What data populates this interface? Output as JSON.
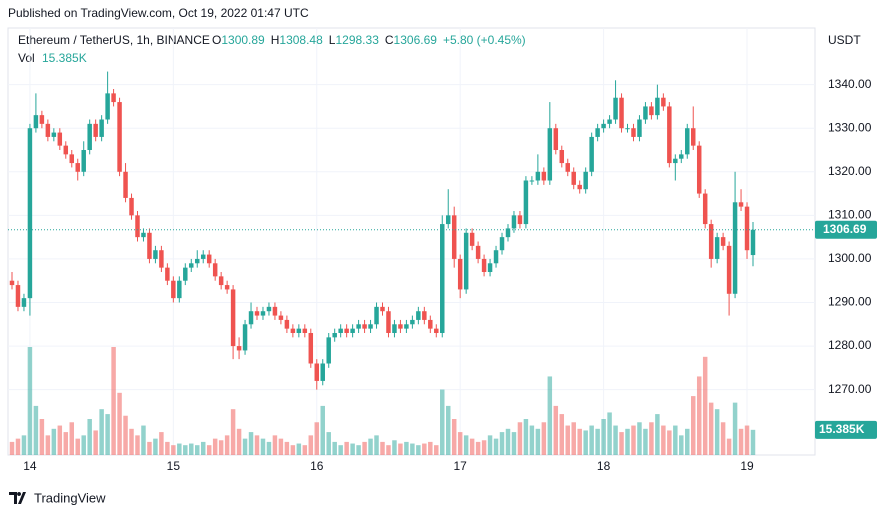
{
  "published": "Published on TradingView.com, Oct 19, 2022 01:47 UTC",
  "brand": "TradingView",
  "chart_data": {
    "type": "candlestick",
    "symbol": "Ethereum / TetherUS, 1h, BINANCE",
    "ohlc_letters": [
      "O",
      "H",
      "L",
      "C"
    ],
    "change": "+5.80 (+0.45%)",
    "volume_title": "Vol",
    "volume_last_label": "15.385K",
    "y_unit": "USDT",
    "up_color": "#26a69a",
    "down_color": "#ef5350",
    "ylim": [
      1255,
      1353
    ],
    "yticks": [
      {
        "value": 1270,
        "label": "1270.00"
      },
      {
        "value": 1280,
        "label": "1280.00"
      },
      {
        "value": 1290,
        "label": "1290.00"
      },
      {
        "value": 1300,
        "label": "1300.00"
      },
      {
        "value": 1310,
        "label": "1310.00"
      },
      {
        "value": 1320,
        "label": "1320.00"
      },
      {
        "value": 1330,
        "label": "1330.00"
      },
      {
        "value": 1340,
        "label": "1340.00"
      }
    ],
    "grid": true,
    "categories": [
      null,
      null,
      null,
      "14",
      null,
      null,
      null,
      null,
      null,
      null,
      null,
      null,
      null,
      null,
      null,
      null,
      null,
      null,
      null,
      null,
      null,
      null,
      null,
      null,
      null,
      null,
      null,
      "15",
      null,
      null,
      null,
      null,
      null,
      null,
      null,
      null,
      null,
      null,
      null,
      null,
      null,
      null,
      null,
      null,
      null,
      null,
      null,
      null,
      null,
      null,
      null,
      "16",
      null,
      null,
      null,
      null,
      null,
      null,
      null,
      null,
      null,
      null,
      null,
      null,
      null,
      null,
      null,
      null,
      null,
      null,
      null,
      null,
      null,
      null,
      null,
      "17",
      null,
      null,
      null,
      null,
      null,
      null,
      null,
      null,
      null,
      null,
      null,
      null,
      null,
      null,
      null,
      null,
      null,
      null,
      null,
      null,
      null,
      null,
      null,
      "18",
      null,
      null,
      null,
      null,
      null,
      null,
      null,
      null,
      null,
      null,
      null,
      null,
      null,
      null,
      null,
      null,
      null,
      null,
      null,
      null,
      null,
      null,
      null,
      "19",
      null
    ],
    "open": [
      1295,
      1294,
      1289,
      1291,
      1330,
      1333,
      1331,
      1328,
      1329,
      1326,
      1324,
      1322,
      1320,
      1325,
      1331,
      1328,
      1332,
      1338,
      1336,
      1320,
      1314,
      1310,
      1305,
      1306,
      1300,
      1302,
      1298,
      1295,
      1291,
      1295,
      1298,
      1299,
      1300,
      1301,
      1299,
      1296,
      1294,
      1293,
      1280,
      1279,
      1285,
      1288,
      1287,
      1288,
      1289,
      1287,
      1286,
      1284,
      1283,
      1284,
      1283,
      1276,
      1272,
      1276,
      1282,
      1283,
      1284,
      1283,
      1284,
      1285,
      1284,
      1285,
      1289,
      1288,
      1283,
      1285,
      1284,
      1285,
      1286,
      1288,
      1286,
      1284,
      1283,
      1308,
      1310,
      1300,
      1293,
      1306,
      1303,
      1300,
      1297,
      1299,
      1302,
      1305,
      1307,
      1310,
      1308,
      1318,
      1318,
      1320,
      1318,
      1330,
      1325,
      1322,
      1320,
      1317,
      1316,
      1320,
      1328,
      1330,
      1331,
      1332,
      1337,
      1330,
      1330,
      1328,
      1332,
      1335,
      1333,
      1337,
      1335,
      1322,
      1323,
      1324,
      1330,
      1326,
      1315,
      1308,
      1300,
      1305,
      1303,
      1292,
      1313,
      1312,
      1300.89
    ],
    "high": [
      1297,
      1295,
      1292,
      1331,
      1338,
      1334,
      1332,
      1330,
      1330,
      1327,
      1325,
      1323,
      1327,
      1332,
      1332,
      1333,
      1343,
      1339,
      1337,
      1322,
      1315,
      1311,
      1307,
      1307,
      1303,
      1303,
      1299,
      1296,
      1296,
      1299,
      1300,
      1302,
      1302,
      1302,
      1300,
      1297,
      1295,
      1294,
      1282,
      1286,
      1290,
      1289,
      1289,
      1290,
      1290,
      1288,
      1287,
      1285,
      1285,
      1285,
      1284,
      1277,
      1277,
      1283,
      1284,
      1285,
      1285,
      1285,
      1286,
      1286,
      1286,
      1290,
      1290,
      1289,
      1286,
      1286,
      1286,
      1287,
      1289,
      1289,
      1287,
      1285,
      1310,
      1316,
      1312,
      1301,
      1307,
      1307,
      1304,
      1301,
      1300,
      1303,
      1306,
      1308,
      1311,
      1311,
      1319,
      1319,
      1324,
      1321,
      1336,
      1331,
      1326,
      1323,
      1321,
      1318,
      1321,
      1329,
      1331,
      1332,
      1333,
      1341,
      1338,
      1331,
      1331,
      1333,
      1336,
      1336,
      1340,
      1338,
      1336,
      1324,
      1325,
      1331,
      1335,
      1327,
      1316,
      1309,
      1306,
      1306,
      1304,
      1320,
      1316,
      1313,
      1308.48
    ],
    "low": [
      1293,
      1288,
      1288,
      1287,
      1329,
      1330,
      1327,
      1327,
      1325,
      1323,
      1321,
      1318,
      1319,
      1324,
      1327,
      1327,
      1331,
      1335,
      1319,
      1313,
      1309,
      1304,
      1304,
      1299,
      1299,
      1297,
      1294,
      1290,
      1290,
      1294,
      1297,
      1298,
      1299,
      1298,
      1295,
      1293,
      1292,
      1277,
      1277,
      1278,
      1284,
      1286,
      1286,
      1287,
      1286,
      1285,
      1283,
      1282,
      1282,
      1282,
      1275,
      1270,
      1271,
      1275,
      1281,
      1282,
      1282,
      1282,
      1283,
      1283,
      1283,
      1284,
      1287,
      1282,
      1282,
      1283,
      1283,
      1284,
      1285,
      1285,
      1283,
      1282,
      1282,
      1307,
      1298,
      1291,
      1292,
      1302,
      1299,
      1296,
      1296,
      1298,
      1301,
      1304,
      1306,
      1307,
      1307,
      1317,
      1317,
      1317,
      1317,
      1324,
      1321,
      1319,
      1316,
      1315,
      1315,
      1319,
      1327,
      1329,
      1330,
      1331,
      1329,
      1329,
      1327,
      1327,
      1331,
      1332,
      1332,
      1334,
      1321,
      1318,
      1322,
      1323,
      1325,
      1314,
      1307,
      1298,
      1299,
      1302,
      1287,
      1291,
      1311,
      1300,
      1298.33
    ],
    "close": [
      1294,
      1289,
      1291,
      1330,
      1333,
      1331,
      1328,
      1329,
      1326,
      1324,
      1322,
      1320,
      1325,
      1331,
      1328,
      1332,
      1338,
      1336,
      1320,
      1314,
      1310,
      1305,
      1306,
      1300,
      1302,
      1298,
      1295,
      1291,
      1295,
      1298,
      1299,
      1300,
      1301,
      1299,
      1296,
      1294,
      1293,
      1280,
      1279,
      1285,
      1288,
      1287,
      1288,
      1289,
      1287,
      1286,
      1284,
      1283,
      1284,
      1283,
      1276,
      1272,
      1276,
      1282,
      1283,
      1284,
      1283,
      1284,
      1285,
      1284,
      1285,
      1289,
      1288,
      1283,
      1285,
      1284,
      1285,
      1286,
      1288,
      1286,
      1284,
      1283,
      1308,
      1310,
      1300,
      1293,
      1306,
      1303,
      1300,
      1297,
      1299,
      1302,
      1305,
      1307,
      1310,
      1308,
      1318,
      1318,
      1320,
      1318,
      1330,
      1325,
      1322,
      1320,
      1317,
      1316,
      1320,
      1328,
      1330,
      1331,
      1332,
      1337,
      1330,
      1330,
      1328,
      1332,
      1335,
      1333,
      1337,
      1335,
      1322,
      1323,
      1324,
      1330,
      1326,
      1315,
      1308,
      1300,
      1305,
      1303,
      1292,
      1313,
      1312,
      1302,
      1306.69
    ],
    "volume": [
      8,
      10,
      12,
      66,
      30,
      22,
      12,
      16,
      18,
      14,
      20,
      10,
      12,
      22,
      15,
      28,
      25,
      66,
      38,
      24,
      16,
      12,
      18,
      8,
      10,
      14,
      8,
      6,
      7,
      6,
      7,
      6,
      8,
      6,
      10,
      9,
      12,
      28,
      16,
      10,
      14,
      12,
      10,
      8,
      12,
      10,
      8,
      6,
      7,
      6,
      12,
      20,
      30,
      14,
      8,
      6,
      8,
      7,
      6,
      8,
      10,
      12,
      8,
      6,
      9,
      7,
      8,
      7,
      6,
      7,
      8,
      6,
      40,
      30,
      22,
      14,
      12,
      10,
      8,
      9,
      12,
      10,
      14,
      16,
      14,
      20,
      22,
      18,
      16,
      20,
      48,
      30,
      25,
      18,
      20,
      16,
      15,
      18,
      16,
      22,
      26,
      18,
      14,
      16,
      18,
      20,
      16,
      20,
      25,
      18,
      15,
      18,
      12,
      16,
      36,
      48,
      60,
      32,
      28,
      20,
      10,
      32,
      16,
      18,
      15.385
    ]
  }
}
